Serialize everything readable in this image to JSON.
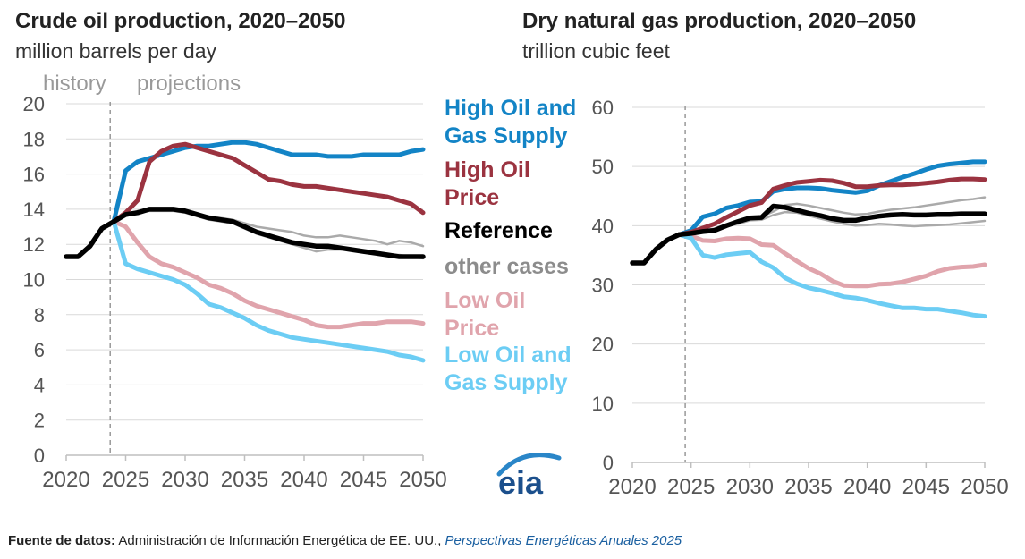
{
  "left": {
    "title": "Crude oil production, 2020–2050",
    "subtitle": "million barrels per day",
    "history_label": "history",
    "projections_label": "projections"
  },
  "right": {
    "title": "Dry natural gas production, 2020–2050",
    "subtitle": "trillion cubic feet"
  },
  "legend": [
    {
      "label": "High Oil and\nGas Supply",
      "color": "#1384c6"
    },
    {
      "label": "High Oil\nPrice",
      "color": "#9b3340"
    },
    {
      "label": "Reference",
      "color": "#000000"
    },
    {
      "label": "other cases",
      "color": "#8c8c8c"
    },
    {
      "label": "Low Oil\nPrice",
      "color": "#e0a4ac"
    },
    {
      "label": "Low Oil and\nGas Supply",
      "color": "#6ccdf4"
    }
  ],
  "logo": "eia",
  "source": {
    "label": "Fuente de datos:",
    "text": "Administración de Información Energética de EE. UU.,",
    "publication": "Perspectivas Energéticas Anuales 2025"
  },
  "chart_data": [
    {
      "type": "line",
      "title": "Crude oil production, 2020–2050",
      "ylabel": "million barrels per day",
      "xlim": [
        2020,
        2050
      ],
      "ylim": [
        0,
        20
      ],
      "xticks": [
        2020,
        2025,
        2030,
        2035,
        2040,
        2045,
        2050
      ],
      "yticks": [
        0,
        2,
        4,
        6,
        8,
        10,
        12,
        14,
        16,
        18,
        20
      ],
      "history_end": 2023.7,
      "grid": "horizontal",
      "history": {
        "x": [
          2020,
          2021,
          2022,
          2023,
          2024
        ],
        "values": [
          11.3,
          11.3,
          11.9,
          12.9,
          13.3
        ]
      },
      "series": [
        {
          "name": "other cases",
          "color": "#aaaaaa",
          "x": [
            2024,
            2025,
            2026,
            2027,
            2028,
            2029,
            2030,
            2031,
            2032,
            2033,
            2034,
            2035,
            2036,
            2037,
            2038,
            2039,
            2040,
            2041,
            2042,
            2043,
            2044,
            2045,
            2046,
            2047,
            2048,
            2049,
            2050
          ],
          "values": [
            13.3,
            13.7,
            13.9,
            14.0,
            14.0,
            14.0,
            13.9,
            13.7,
            13.6,
            13.5,
            13.4,
            13.2,
            13.0,
            12.9,
            12.8,
            12.7,
            12.5,
            12.4,
            12.4,
            12.5,
            12.4,
            12.3,
            12.2,
            12.0,
            12.2,
            12.1,
            11.9
          ]
        },
        {
          "name": "other cases",
          "color": "#aaaaaa",
          "x": [
            2024,
            2025,
            2026,
            2027,
            2028,
            2029,
            2030,
            2031,
            2032,
            2033,
            2034,
            2035,
            2036,
            2037,
            2038,
            2039,
            2040,
            2041,
            2042,
            2043,
            2044,
            2045,
            2046,
            2047,
            2048,
            2049,
            2050
          ],
          "values": [
            13.3,
            13.6,
            13.8,
            13.9,
            13.9,
            13.9,
            13.8,
            13.6,
            13.4,
            13.3,
            13.2,
            12.9,
            12.6,
            12.4,
            12.2,
            12.0,
            11.8,
            11.6,
            11.7,
            11.7,
            11.7,
            11.6,
            11.5,
            11.4,
            11.4,
            11.3,
            11.2
          ]
        },
        {
          "name": "High Oil and Gas Supply",
          "color": "#1384c6",
          "x": [
            2024,
            2025,
            2026,
            2027,
            2028,
            2029,
            2030,
            2031,
            2032,
            2033,
            2034,
            2035,
            2036,
            2037,
            2038,
            2039,
            2040,
            2041,
            2042,
            2043,
            2044,
            2045,
            2046,
            2047,
            2048,
            2049,
            2050
          ],
          "values": [
            13.3,
            16.2,
            16.7,
            16.9,
            17.1,
            17.3,
            17.5,
            17.6,
            17.6,
            17.7,
            17.8,
            17.8,
            17.7,
            17.5,
            17.3,
            17.1,
            17.1,
            17.1,
            17.0,
            17.0,
            17.0,
            17.1,
            17.1,
            17.1,
            17.1,
            17.3,
            17.4
          ]
        },
        {
          "name": "High Oil Price",
          "color": "#9b3340",
          "x": [
            2024,
            2025,
            2026,
            2027,
            2028,
            2029,
            2030,
            2031,
            2032,
            2033,
            2034,
            2035,
            2036,
            2037,
            2038,
            2039,
            2040,
            2041,
            2042,
            2043,
            2044,
            2045,
            2046,
            2047,
            2048,
            2049,
            2050
          ],
          "values": [
            13.3,
            13.8,
            14.5,
            16.7,
            17.3,
            17.6,
            17.7,
            17.5,
            17.3,
            17.1,
            16.9,
            16.5,
            16.1,
            15.7,
            15.6,
            15.4,
            15.3,
            15.3,
            15.2,
            15.1,
            15.0,
            14.9,
            14.8,
            14.7,
            14.5,
            14.3,
            13.8
          ]
        },
        {
          "name": "Low Oil Price",
          "color": "#e0a4ac",
          "x": [
            2024,
            2025,
            2026,
            2027,
            2028,
            2029,
            2030,
            2031,
            2032,
            2033,
            2034,
            2035,
            2036,
            2037,
            2038,
            2039,
            2040,
            2041,
            2042,
            2043,
            2044,
            2045,
            2046,
            2047,
            2048,
            2049,
            2050
          ],
          "values": [
            13.3,
            13.0,
            12.1,
            11.3,
            10.9,
            10.7,
            10.4,
            10.1,
            9.7,
            9.5,
            9.2,
            8.8,
            8.5,
            8.3,
            8.1,
            7.9,
            7.7,
            7.4,
            7.3,
            7.3,
            7.4,
            7.5,
            7.5,
            7.6,
            7.6,
            7.6,
            7.5
          ]
        },
        {
          "name": "Low Oil and Gas Supply",
          "color": "#6ccdf4",
          "x": [
            2024,
            2025,
            2026,
            2027,
            2028,
            2029,
            2030,
            2031,
            2032,
            2033,
            2034,
            2035,
            2036,
            2037,
            2038,
            2039,
            2040,
            2041,
            2042,
            2043,
            2044,
            2045,
            2046,
            2047,
            2048,
            2049,
            2050
          ],
          "values": [
            13.3,
            10.9,
            10.6,
            10.4,
            10.2,
            10.0,
            9.7,
            9.2,
            8.6,
            8.4,
            8.1,
            7.8,
            7.4,
            7.1,
            6.9,
            6.7,
            6.6,
            6.5,
            6.4,
            6.3,
            6.2,
            6.1,
            6.0,
            5.9,
            5.7,
            5.6,
            5.4
          ]
        },
        {
          "name": "Reference",
          "color": "#000000",
          "x": [
            2024,
            2025,
            2026,
            2027,
            2028,
            2029,
            2030,
            2031,
            2032,
            2033,
            2034,
            2035,
            2036,
            2037,
            2038,
            2039,
            2040,
            2041,
            2042,
            2043,
            2044,
            2045,
            2046,
            2047,
            2048,
            2049,
            2050
          ],
          "values": [
            13.3,
            13.7,
            13.8,
            14.0,
            14.0,
            14.0,
            13.9,
            13.7,
            13.5,
            13.4,
            13.3,
            13.0,
            12.7,
            12.5,
            12.3,
            12.1,
            12.0,
            11.9,
            11.9,
            11.8,
            11.7,
            11.6,
            11.5,
            11.4,
            11.3,
            11.3,
            11.3
          ]
        }
      ]
    },
    {
      "type": "line",
      "title": "Dry natural gas production, 2020–2050",
      "ylabel": "trillion cubic feet",
      "xlim": [
        2020,
        2050
      ],
      "ylim": [
        0,
        60
      ],
      "xticks": [
        2020,
        2025,
        2030,
        2035,
        2040,
        2045,
        2050
      ],
      "yticks": [
        0,
        10,
        20,
        30,
        40,
        50,
        60
      ],
      "history_end": 2024.5,
      "grid": "horizontal",
      "history": {
        "x": [
          2020,
          2021,
          2022,
          2023,
          2024
        ],
        "values": [
          33.7,
          33.7,
          36.0,
          37.6,
          38.5
        ]
      },
      "series": [
        {
          "name": "other cases",
          "color": "#aaaaaa",
          "x": [
            2024,
            2025,
            2026,
            2027,
            2028,
            2029,
            2030,
            2031,
            2032,
            2033,
            2034,
            2035,
            2036,
            2037,
            2038,
            2039,
            2040,
            2041,
            2042,
            2043,
            2044,
            2045,
            2046,
            2047,
            2048,
            2049,
            2050
          ],
          "values": [
            38.5,
            38.8,
            39.2,
            39.5,
            40.2,
            40.7,
            41.3,
            41.5,
            42.4,
            43.5,
            43.7,
            43.4,
            43.0,
            42.6,
            42.2,
            41.9,
            42.0,
            42.4,
            42.7,
            42.9,
            43.1,
            43.4,
            43.7,
            44.0,
            44.3,
            44.5,
            44.8
          ]
        },
        {
          "name": "other cases",
          "color": "#aaaaaa",
          "x": [
            2024,
            2025,
            2026,
            2027,
            2028,
            2029,
            2030,
            2031,
            2032,
            2033,
            2034,
            2035,
            2036,
            2037,
            2038,
            2039,
            2040,
            2041,
            2042,
            2043,
            2044,
            2045,
            2046,
            2047,
            2048,
            2049,
            2050
          ],
          "values": [
            38.5,
            38.7,
            39.0,
            39.2,
            39.9,
            40.3,
            40.9,
            41.0,
            41.8,
            42.3,
            42.2,
            41.7,
            41.2,
            40.7,
            40.3,
            40.0,
            40.1,
            40.3,
            40.2,
            40.0,
            39.9,
            40.0,
            40.1,
            40.2,
            40.4,
            40.6,
            40.8
          ]
        },
        {
          "name": "High Oil and Gas Supply",
          "color": "#1384c6",
          "x": [
            2024,
            2025,
            2026,
            2027,
            2028,
            2029,
            2030,
            2031,
            2032,
            2033,
            2034,
            2035,
            2036,
            2037,
            2038,
            2039,
            2040,
            2041,
            2042,
            2043,
            2044,
            2045,
            2046,
            2047,
            2048,
            2049,
            2050
          ],
          "values": [
            38.5,
            39.2,
            41.5,
            42.0,
            43.0,
            43.4,
            44.0,
            44.1,
            45.8,
            46.2,
            46.4,
            46.4,
            46.3,
            46.0,
            45.8,
            45.6,
            45.9,
            46.8,
            47.5,
            48.2,
            48.8,
            49.5,
            50.1,
            50.4,
            50.6,
            50.8,
            50.8
          ]
        },
        {
          "name": "High Oil Price",
          "color": "#9b3340",
          "x": [
            2024,
            2025,
            2026,
            2027,
            2028,
            2029,
            2030,
            2031,
            2032,
            2033,
            2034,
            2035,
            2036,
            2037,
            2038,
            2039,
            2040,
            2041,
            2042,
            2043,
            2044,
            2045,
            2046,
            2047,
            2048,
            2049,
            2050
          ],
          "values": [
            38.5,
            38.9,
            39.6,
            40.3,
            41.4,
            42.4,
            43.4,
            43.9,
            46.2,
            46.8,
            47.3,
            47.5,
            47.7,
            47.6,
            47.2,
            46.6,
            46.6,
            46.8,
            46.9,
            46.9,
            47.0,
            47.2,
            47.4,
            47.7,
            47.9,
            47.9,
            47.8
          ]
        },
        {
          "name": "Low Oil Price",
          "color": "#e0a4ac",
          "x": [
            2024,
            2025,
            2026,
            2027,
            2028,
            2029,
            2030,
            2031,
            2032,
            2033,
            2034,
            2035,
            2036,
            2037,
            2038,
            2039,
            2040,
            2041,
            2042,
            2043,
            2044,
            2045,
            2046,
            2047,
            2048,
            2049,
            2050
          ],
          "values": [
            38.5,
            38.3,
            37.5,
            37.4,
            37.8,
            37.9,
            37.8,
            36.8,
            36.7,
            35.3,
            34.0,
            32.8,
            31.9,
            30.7,
            29.9,
            29.8,
            29.8,
            30.1,
            30.2,
            30.5,
            31.0,
            31.5,
            32.3,
            32.8,
            33.0,
            33.1,
            33.4
          ]
        },
        {
          "name": "Low Oil and Gas Supply",
          "color": "#6ccdf4",
          "x": [
            2024,
            2025,
            2026,
            2027,
            2028,
            2029,
            2030,
            2031,
            2032,
            2033,
            2034,
            2035,
            2036,
            2037,
            2038,
            2039,
            2040,
            2041,
            2042,
            2043,
            2044,
            2045,
            2046,
            2047,
            2048,
            2049,
            2050
          ],
          "values": [
            38.5,
            37.9,
            35.0,
            34.6,
            35.1,
            35.3,
            35.5,
            33.9,
            32.9,
            31.2,
            30.2,
            29.5,
            29.1,
            28.6,
            28.0,
            27.8,
            27.4,
            26.9,
            26.5,
            26.1,
            26.1,
            25.9,
            25.9,
            25.6,
            25.3,
            24.9,
            24.7
          ]
        },
        {
          "name": "Reference",
          "color": "#000000",
          "x": [
            2024,
            2025,
            2026,
            2027,
            2028,
            2029,
            2030,
            2031,
            2032,
            2033,
            2034,
            2035,
            2036,
            2037,
            2038,
            2039,
            2040,
            2041,
            2042,
            2043,
            2044,
            2045,
            2046,
            2047,
            2048,
            2049,
            2050
          ],
          "values": [
            38.5,
            38.7,
            39.0,
            39.2,
            40.0,
            40.7,
            41.3,
            41.4,
            43.3,
            43.1,
            42.6,
            42.1,
            41.7,
            41.2,
            40.9,
            40.9,
            41.3,
            41.6,
            41.8,
            41.9,
            41.8,
            41.8,
            41.9,
            41.9,
            42.0,
            42.0,
            42.0
          ]
        }
      ]
    }
  ]
}
